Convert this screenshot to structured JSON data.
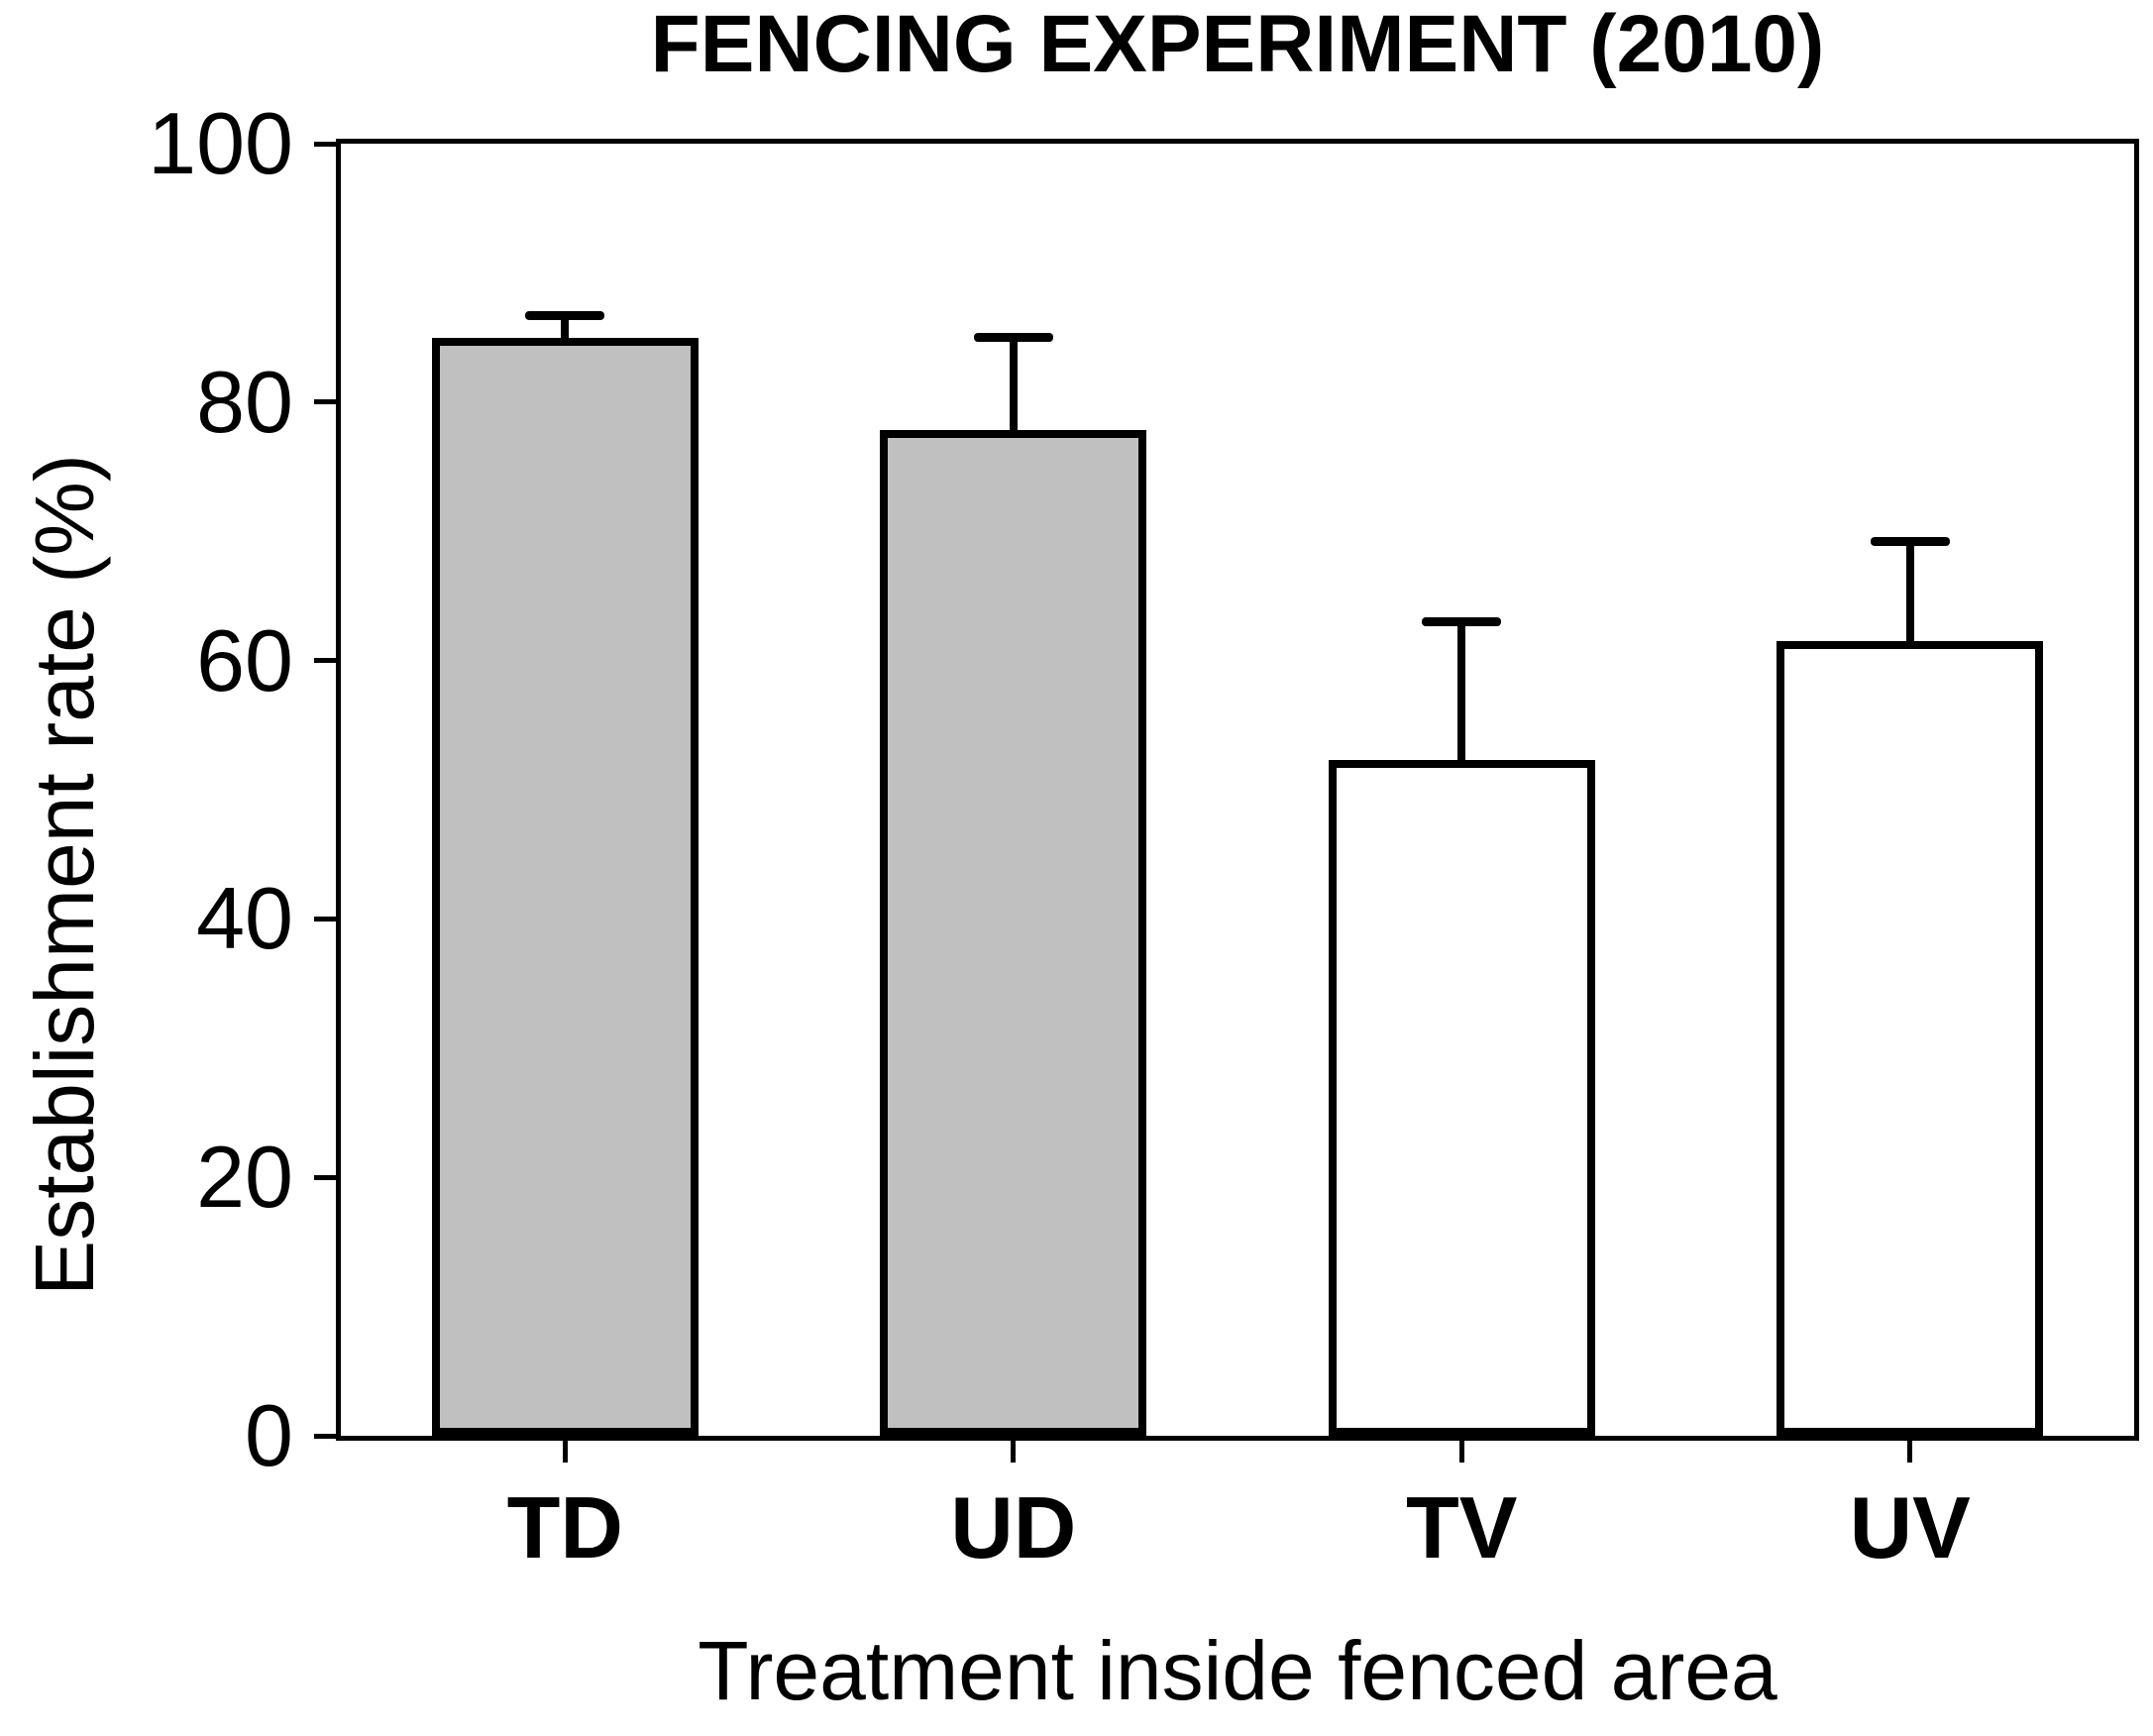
{
  "chart_data": {
    "type": "bar",
    "title": "FENCING EXPERIMENT (2010)",
    "xlabel": "Treatment inside fenced area",
    "ylabel": "Establishment rate (%)",
    "categories": [
      "TD",
      "UD",
      "TV",
      "UV"
    ],
    "values": [
      85.0,
      77.8,
      52.3,
      61.5
    ],
    "upper_errors": [
      1.7,
      7.2,
      10.7,
      7.7
    ],
    "error_bar_style": "upper only, capped",
    "bar_fill_colors": [
      "#c0c0c0",
      "#c0c0c0",
      "#ffffff",
      "#ffffff"
    ],
    "bar_border_color": "#000000",
    "axis_color": "#000000",
    "background_color": "#ffffff",
    "ylim": [
      0,
      100
    ],
    "yticks": [
      0,
      20,
      40,
      60,
      80,
      100
    ],
    "grid": false,
    "legend": null
  }
}
